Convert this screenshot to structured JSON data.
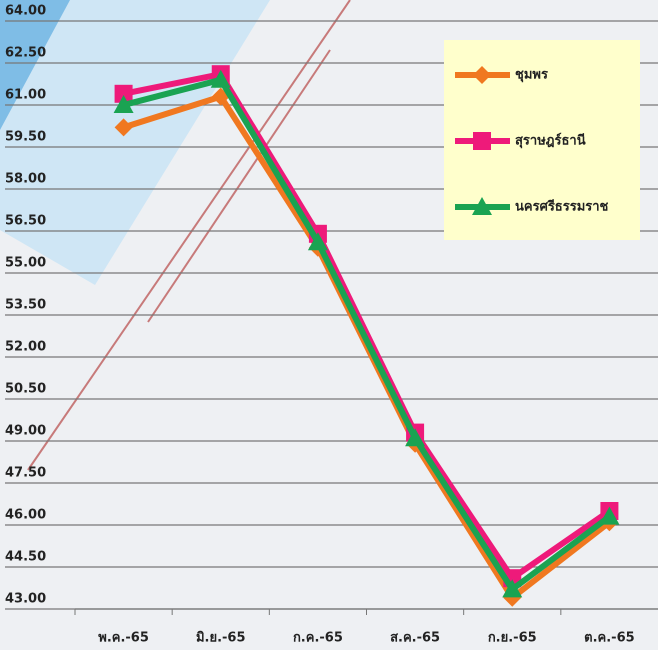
{
  "chart_data": {
    "type": "line",
    "categories": [
      "พ.ค.-65",
      "มิ.ย.-65",
      "ก.ค.-65",
      "ส.ค.-65",
      "ก.ย.-65",
      "ต.ค.-65"
    ],
    "series": [
      {
        "name": "ชุมพร",
        "color": "#f07820",
        "marker": "diamond",
        "values": [
          60.2,
          61.3,
          55.9,
          48.9,
          43.4,
          46.1
        ]
      },
      {
        "name": "สุราษฎร์ธานี",
        "color": "#ee1a7a",
        "marker": "square",
        "values": [
          61.4,
          62.1,
          56.4,
          49.3,
          44.1,
          46.5
        ]
      },
      {
        "name": "นครศรีธรรมราช",
        "color": "#1aa352",
        "marker": "triangle",
        "values": [
          61.0,
          61.9,
          56.1,
          49.1,
          43.7,
          46.3
        ]
      }
    ],
    "ylim": [
      43,
      64
    ],
    "yticks": [
      {
        "value": 43,
        "label": "43.00"
      },
      {
        "value": 44.5,
        "label": "44.50"
      },
      {
        "value": 46,
        "label": "46.00"
      },
      {
        "value": 47.5,
        "label": "47.50"
      },
      {
        "value": 49,
        "label": "49.00"
      },
      {
        "value": 50.5,
        "label": "50.50"
      },
      {
        "value": 52,
        "label": "52.00"
      },
      {
        "value": 53.5,
        "label": "53.50"
      },
      {
        "value": 55,
        "label": "55.00"
      },
      {
        "value": 56.5,
        "label": "56.50"
      },
      {
        "value": 58,
        "label": "58.00"
      },
      {
        "value": 59.5,
        "label": "59.50"
      },
      {
        "value": 61,
        "label": "61.00"
      },
      {
        "value": 62.5,
        "label": "62.50"
      },
      {
        "value": 64,
        "label": "64.00"
      }
    ],
    "grid": true
  }
}
